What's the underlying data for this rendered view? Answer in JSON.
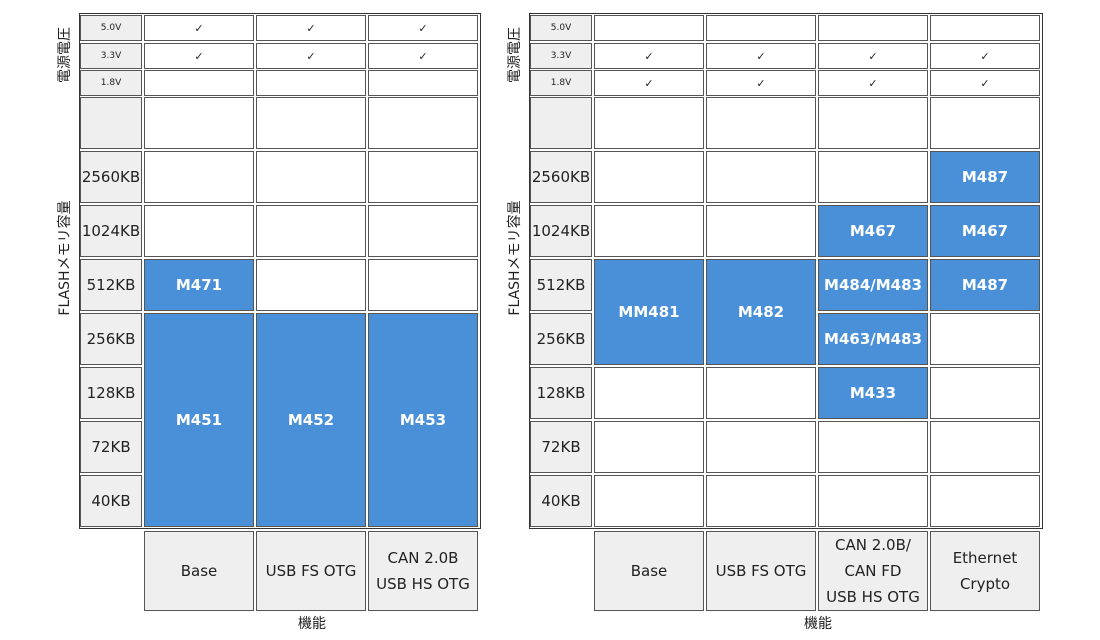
{
  "left": {
    "voltage_label": "電源電圧",
    "flash_label": "FLASHメモリ容量",
    "function_label": "機能",
    "voltages": [
      "5.0V",
      "3.3V",
      "1.8V"
    ],
    "voltage_checks": [
      [
        "✓",
        "✓",
        "✓"
      ],
      [
        "✓",
        "✓",
        "✓"
      ],
      [
        null,
        null,
        null
      ]
    ],
    "sizes": [
      "2560KB",
      "1024KB",
      "512KB",
      "256KB",
      "128KB",
      "72KB",
      "40KB"
    ],
    "columns": [
      "Base",
      "USB FS OTG",
      "CAN 2.0B\nUSB HS OTG"
    ],
    "blocks": [
      "M471",
      "M451",
      "M452",
      "M453"
    ]
  },
  "right": {
    "voltage_label": "電源電圧",
    "flash_label": "FLASHメモリ容量",
    "function_label": "機能",
    "voltages": [
      "5.0V",
      "3.3V",
      "1.8V"
    ],
    "voltage_checks": [
      [
        null,
        null,
        null,
        null
      ],
      [
        "✓",
        "✓",
        "✓",
        "✓"
      ],
      [
        "✓",
        "✓",
        "✓",
        "✓"
      ]
    ],
    "sizes": [
      "2560KB",
      "1024KB",
      "512KB",
      "256KB",
      "128KB",
      "72KB",
      "40KB"
    ],
    "columns": [
      "Base",
      "USB FS OTG",
      "CAN 2.0B/\nCAN FD\nUSB HS OTG",
      "Ethernet\nCrypto"
    ],
    "blocks": [
      "M487",
      "M467",
      "M467",
      "MM481",
      "M482",
      "M484/M483",
      "M487",
      "M463/M483",
      "M433"
    ]
  }
}
